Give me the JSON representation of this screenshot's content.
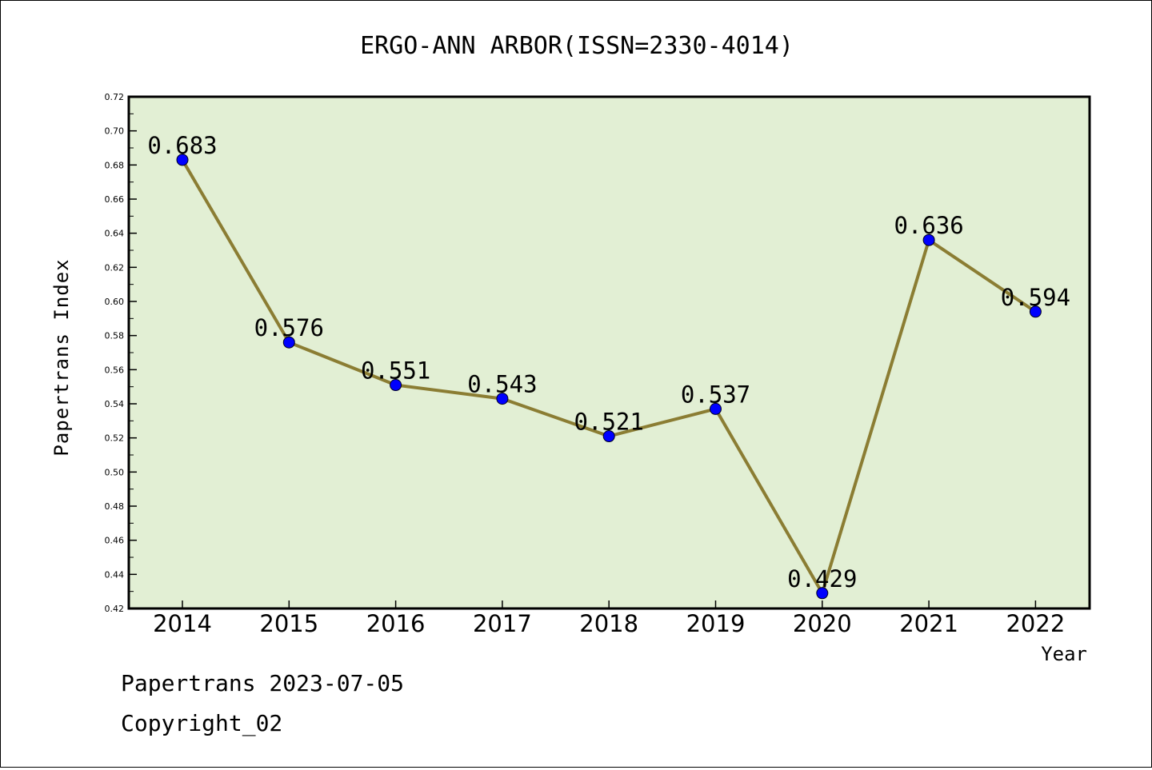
{
  "chart_data": {
    "type": "line",
    "title": "ERGO-ANN ARBOR(ISSN=2330-4014)",
    "xlabel": "Year",
    "ylabel": "Papertrans Index",
    "categories": [
      "2014",
      "2015",
      "2016",
      "2017",
      "2018",
      "2019",
      "2020",
      "2021",
      "2022"
    ],
    "series": [
      {
        "values": [
          0.683,
          0.576,
          0.551,
          0.543,
          0.521,
          0.537,
          0.429,
          0.636,
          0.594
        ],
        "labels": [
          "0.683",
          "0.576",
          "0.551",
          "0.543",
          "0.521",
          "0.537",
          "0.429",
          "0.636",
          "0.594"
        ]
      }
    ],
    "ylim": [
      0.42,
      0.72
    ],
    "yticks": [
      "0.42",
      "0.44",
      "0.46",
      "0.48",
      "0.50",
      "0.52",
      "0.54",
      "0.56",
      "0.58",
      "0.60",
      "0.62",
      "0.64",
      "0.66",
      "0.68",
      "0.70",
      "0.72"
    ],
    "grid": false,
    "colors": {
      "plot_background": "#e2efd4",
      "line": "#8b7d33",
      "marker": "#0000ff"
    }
  },
  "footer": {
    "line1": "Papertrans 2023-07-05",
    "line2": "Copyright_02"
  }
}
